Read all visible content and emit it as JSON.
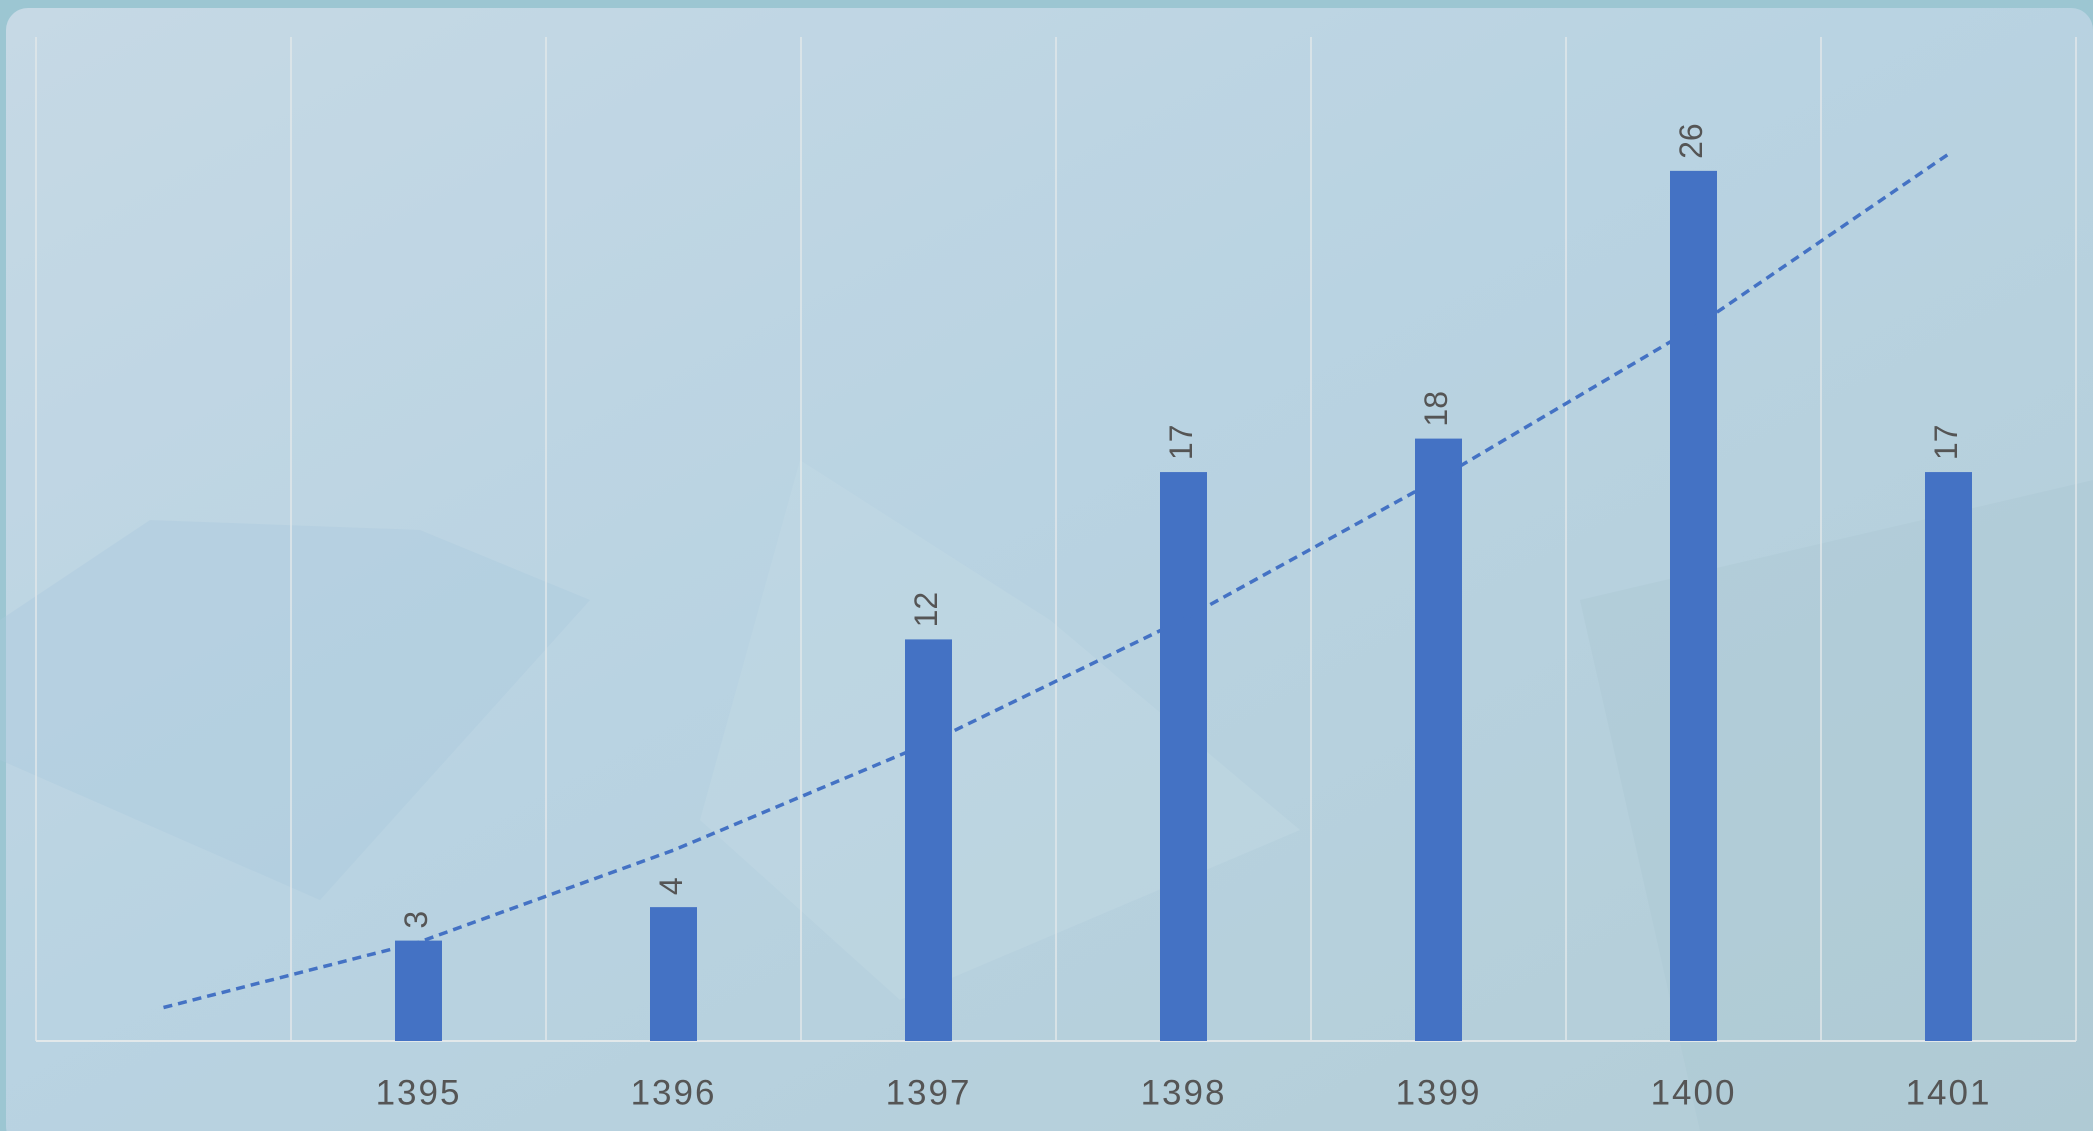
{
  "chart_data": {
    "type": "bar",
    "categories": [
      null,
      "1395",
      "1396",
      "1397",
      "1398",
      "1399",
      "1400",
      "1401"
    ],
    "values": [
      null,
      3,
      4,
      12,
      17,
      18,
      26,
      17
    ],
    "color": "#4472c4",
    "ylim": [
      0,
      30
    ],
    "grid": true,
    "trendline": {
      "values": [
        1.0,
        2.95,
        5.7,
        8.9,
        12.6,
        16.8,
        21.3,
        26.5
      ],
      "color": "#4472c4",
      "style": "dashed"
    }
  }
}
